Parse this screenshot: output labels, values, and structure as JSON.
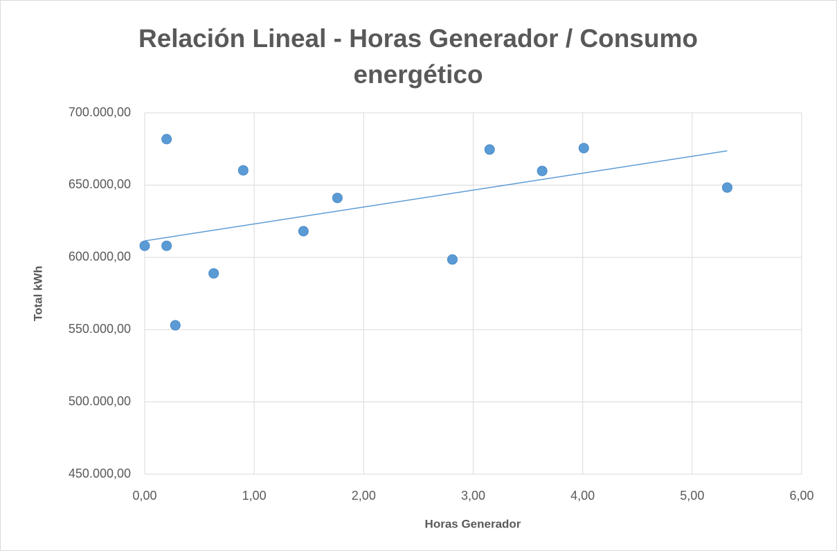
{
  "chart_data": {
    "type": "scatter",
    "title": "Relación Lineal - Horas Generador / Consumo energético",
    "x_label": "Horas Generador",
    "y_label": "Total kWh",
    "color": "#5b9bd5",
    "x": [
      0,
      0.2,
      0.2,
      0.28,
      0.63,
      0.9,
      1.45,
      1.76,
      2.81,
      3.15,
      3.63,
      4.01,
      5.32
    ],
    "values": [
      608000,
      681800,
      608000,
      553000,
      588900,
      660200,
      618100,
      641100,
      598500,
      674600,
      659800,
      675600,
      648300
    ],
    "trendline": {
      "x": [
        0,
        5.32
      ],
      "values": [
        611400,
        673700
      ]
    },
    "xlim": [
      0,
      6
    ],
    "xticks": [
      {
        "value": 0,
        "label": "0,00"
      },
      {
        "value": 1,
        "label": "1,00"
      },
      {
        "value": 2,
        "label": "2,00"
      },
      {
        "value": 3,
        "label": "3,00"
      },
      {
        "value": 4,
        "label": "4,00"
      },
      {
        "value": 5,
        "label": "5,00"
      },
      {
        "value": 6,
        "label": "6,00"
      }
    ],
    "ylim": [
      450000,
      700000
    ],
    "yticks": [
      {
        "value": 450000,
        "label": "450.000,00"
      },
      {
        "value": 500000,
        "label": "500.000,00"
      },
      {
        "value": 550000,
        "label": "550.000,00"
      },
      {
        "value": 600000,
        "label": "600.000,00"
      },
      {
        "value": 650000,
        "label": "650.000,00"
      },
      {
        "value": 700000,
        "label": "700.000,00"
      }
    ],
    "grid": true
  }
}
